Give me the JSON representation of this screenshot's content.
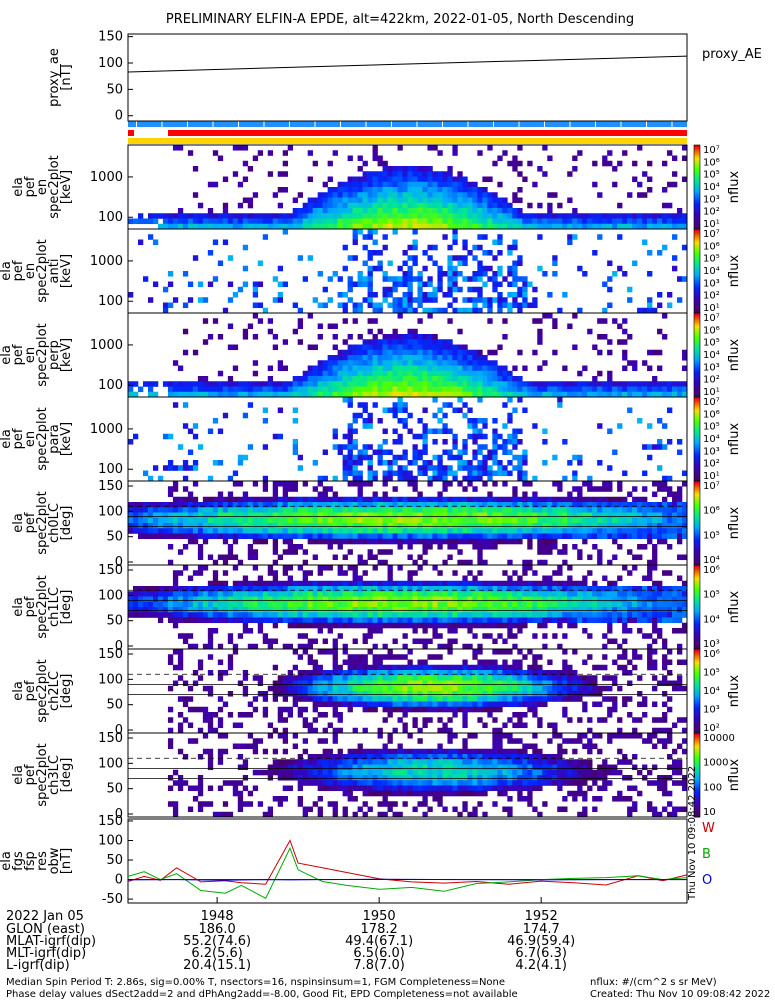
{
  "title": "PRELIMINARY ELFIN-A EPDE, alt=422km, 2022-01-05, North Descending",
  "panels": [
    {
      "ylabel": [
        "proxy_ae",
        "[nT]"
      ],
      "legend": "proxy_AE"
    },
    {
      "ylabel": [
        "ela",
        "pef",
        "en",
        "spec2plot",
        "[keV]"
      ],
      "cbar_label": "nflux"
    },
    {
      "ylabel": [
        "ela",
        "pef",
        "en",
        "spec2plot",
        "anti",
        "[keV]"
      ],
      "cbar_label": "nflux"
    },
    {
      "ylabel": [
        "ela",
        "pef",
        "en",
        "spec2plot",
        "perp",
        "[keV]"
      ],
      "cbar_label": "nflux"
    },
    {
      "ylabel": [
        "ela",
        "pef",
        "en",
        "spec2plot",
        "para",
        "[keV]"
      ],
      "cbar_label": "nflux"
    },
    {
      "ylabel": [
        "ela",
        "pef",
        "spec2plot",
        "ch0LC",
        "[deg]"
      ],
      "cbar_label": "nflux"
    },
    {
      "ylabel": [
        "ela",
        "pef",
        "spec2plot",
        "ch1LC",
        "[deg]"
      ],
      "cbar_label": "nflux"
    },
    {
      "ylabel": [
        "ela",
        "pef",
        "spec2plot",
        "ch2LC",
        "[deg]"
      ],
      "cbar_label": "nflux"
    },
    {
      "ylabel": [
        "ela",
        "pef",
        "spec2plot",
        "ch3LC",
        "[deg]"
      ],
      "cbar_label": "nflux"
    },
    {
      "ylabel": [
        "ela",
        "fgs",
        "fsp",
        "res",
        "obw",
        "[nT]"
      ],
      "legend": [
        "W",
        "B",
        "O"
      ]
    }
  ],
  "chart_data": [
    {
      "type": "line",
      "panel": "proxy_ae",
      "x_minutes": [
        1946.9,
        1953.8
      ],
      "values": [
        83,
        113
      ],
      "ylim": [
        -10,
        155
      ],
      "yticks": [
        "150",
        "100",
        "50",
        "0"
      ],
      "color": "#000000"
    },
    {
      "type": "heatmap",
      "panel": "spec2plot",
      "yticks": [
        "1000",
        "100"
      ],
      "colorbar_ticks": [
        "10⁷",
        "10⁶",
        "10⁵",
        "10⁴",
        "10³",
        "10²",
        "10¹"
      ]
    },
    {
      "type": "heatmap",
      "panel": "spec2plot anti",
      "yticks": [
        "1000",
        "100"
      ],
      "colorbar_ticks": [
        "10⁷",
        "10⁶",
        "10⁵",
        "10⁴",
        "10³",
        "10²",
        "10¹"
      ]
    },
    {
      "type": "heatmap",
      "panel": "spec2plot perp",
      "yticks": [
        "1000",
        "100"
      ],
      "colorbar_ticks": [
        "10⁷",
        "10⁶",
        "10⁵",
        "10⁴",
        "10³",
        "10²",
        "10¹"
      ]
    },
    {
      "type": "heatmap",
      "panel": "spec2plot para",
      "yticks": [
        "1000",
        "100"
      ],
      "colorbar_ticks": [
        "10⁷",
        "10⁶",
        "10⁵",
        "10⁴",
        "10³",
        "10²",
        "10¹"
      ]
    },
    {
      "type": "heatmap",
      "panel": "ch0LC",
      "yticks": [
        "150",
        "100",
        "50",
        "0"
      ],
      "colorbar_ticks": [
        "10⁷",
        "10⁶",
        "10⁵",
        "10⁴"
      ]
    },
    {
      "type": "heatmap",
      "panel": "ch1LC",
      "yticks": [
        "150",
        "100",
        "50",
        "0"
      ],
      "colorbar_ticks": [
        "10⁶",
        "10⁵",
        "10⁴",
        "10³"
      ]
    },
    {
      "type": "heatmap",
      "panel": "ch2LC",
      "yticks": [
        "150",
        "100",
        "50",
        "0"
      ],
      "colorbar_ticks": [
        "10⁶",
        "10⁵",
        "10⁴",
        "10³",
        "10²"
      ]
    },
    {
      "type": "heatmap",
      "panel": "ch3LC",
      "yticks": [
        "150",
        "100",
        "50",
        "0"
      ],
      "colorbar_ticks": [
        "10000",
        "1000",
        "100",
        "10"
      ]
    },
    {
      "type": "line",
      "panel": "fgs_obw",
      "yticks": [
        "150",
        "100",
        "50",
        "0",
        "-50"
      ],
      "ylim": [
        -60,
        155
      ],
      "series": [
        {
          "name": "W",
          "color": "#cc0000",
          "x": [
            1946.9,
            1947.1,
            1947.3,
            1947.5,
            1947.8,
            1948.1,
            1948.3,
            1948.6,
            1948.9,
            1949.0,
            1949.3,
            1949.6,
            1950.0,
            1950.4,
            1950.8,
            1951.2,
            1951.6,
            1952.0,
            1952.4,
            1952.8,
            1953.2,
            1953.5,
            1953.8
          ],
          "values": [
            -5,
            8,
            -2,
            30,
            -6,
            -3,
            -8,
            -12,
            100,
            42,
            30,
            18,
            2,
            -6,
            -9,
            -5,
            -12,
            -4,
            -8,
            -14,
            10,
            -3,
            12
          ]
        },
        {
          "name": "B",
          "color": "#00aa00",
          "x": [
            1946.9,
            1947.1,
            1947.3,
            1947.5,
            1947.8,
            1948.1,
            1948.3,
            1948.6,
            1948.9,
            1949.0,
            1949.3,
            1949.6,
            1950.0,
            1950.4,
            1950.8,
            1951.2,
            1951.6,
            1952.0,
            1952.4,
            1952.8,
            1953.2,
            1953.5,
            1953.8
          ],
          "values": [
            8,
            20,
            0,
            15,
            -28,
            -35,
            -15,
            -48,
            80,
            25,
            -5,
            -15,
            -25,
            -20,
            -30,
            -10,
            -6,
            0,
            3,
            5,
            10,
            0,
            5
          ]
        },
        {
          "name": "O",
          "color": "#0000cc",
          "x": [
            1946.9,
            1947.5,
            1948.1,
            1948.6,
            1948.9,
            1949.3,
            1950.0,
            1951.0,
            1952.0,
            1953.0,
            1953.8
          ],
          "values": [
            -1,
            0,
            -2,
            0,
            -1,
            0,
            1,
            0,
            -1,
            0,
            0
          ]
        }
      ]
    }
  ],
  "xaxis": {
    "date": "2022 Jan 05",
    "ticks": [
      "1948",
      "1950",
      "1952"
    ],
    "rows": [
      {
        "label": "GLON (east)",
        "values": [
          "186.0",
          "178.2",
          "174.7"
        ]
      },
      {
        "label": "MLAT-igrf(dip)",
        "values": [
          "55.2(74.6)",
          "49.4(67.1)",
          "46.9(59.4)"
        ]
      },
      {
        "label": "MLT-igrf(dip)",
        "values": [
          "6.2(5.6)",
          "6.5(6.0)",
          "6.7(6.3)"
        ]
      },
      {
        "label": "L-igrf(dip)",
        "values": [
          "20.4(15.1)",
          "7.8(7.0)",
          "4.2(4.1)"
        ]
      }
    ]
  },
  "footer": {
    "line1": "Median Spin Period T: 2.86s, sig=0.00% T, nsectors=16, nspinsinsum=1, FGM Completeness=None",
    "line2": "Phase delay values dSect2add=2 and dPhAng2add=-8.00, Good Fit, EPD Completeness=not available",
    "units": "nflux: #/(cm^2 s sr MeV)",
    "created": "Created: Thu Nov 10 09:08:42 2022",
    "vertical": "Thu Nov 10 09:08:42 2022"
  }
}
